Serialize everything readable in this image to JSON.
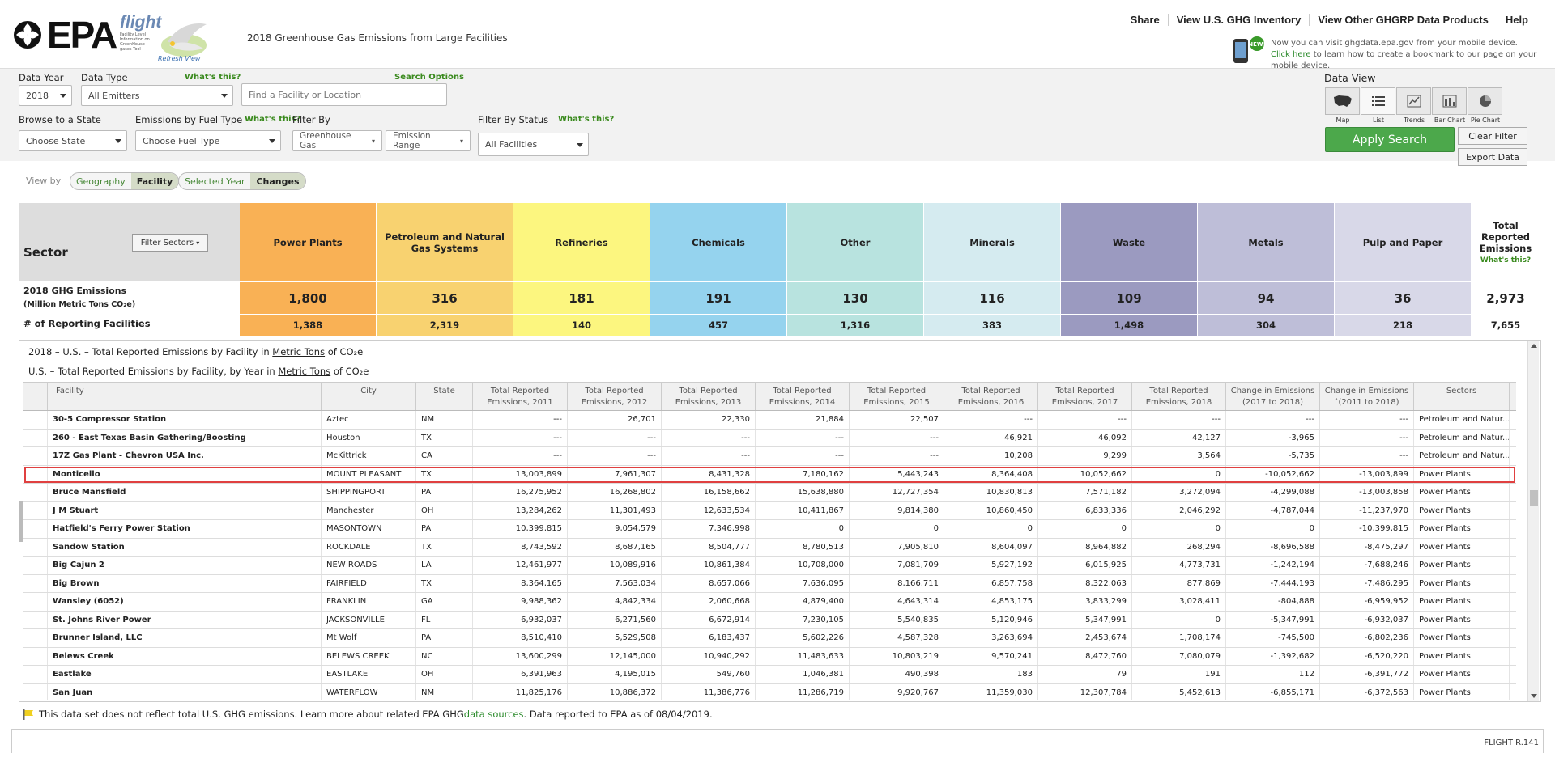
{
  "header": {
    "logo_text": "EPA",
    "flight_logo_text": "flight",
    "flight_subtext": "Facility Level Information on GreenHouse gases Tool",
    "refresh_view": "Refresh View",
    "page_title": "2018 Greenhouse Gas Emissions from Large Facilities",
    "top_links": [
      "Share",
      "View U.S. GHG Inventory",
      "View Other GHGRP Data Products",
      "Help"
    ],
    "mobile_text_a": "Now you can visit ghgdata.epa.gov from your mobile device. ",
    "mobile_link": "Click here",
    "mobile_text_b": " to learn how to create a bookmark to our page on your mobile device.",
    "mobile_badge": "NEW!"
  },
  "search": {
    "data_year_label": "Data Year",
    "data_year_value": "2018",
    "data_type_label": "Data Type",
    "data_type_whats_this": "What's this?",
    "data_type_value": "All Emitters",
    "search_options": "Search Options",
    "search_placeholder": "Find a Facility or Location",
    "browse_state_label": "Browse to a State",
    "state_value": "Choose State",
    "fuel_label": "Emissions by Fuel Type",
    "fuel_whats_this": "What's this?",
    "fuel_value": "Choose Fuel Type",
    "filter_by_label": "Filter By",
    "greenhouse_gas_btn": "Greenhouse Gas",
    "emission_range_btn": "Emission Range",
    "status_label": "Filter By Status",
    "status_whats_this": "What's this?",
    "status_value": "All Facilities"
  },
  "data_view": {
    "label": "Data View",
    "views": [
      "Map",
      "List",
      "Trends",
      "Bar Chart",
      "Pie Chart"
    ],
    "active_view": "List",
    "apply_button": "Apply Search",
    "clear_button": "Clear Filter",
    "export_button": "Export Data"
  },
  "view_by": {
    "label": "View by",
    "geo": "Geography",
    "facility": "Facility",
    "selected_year": "Selected Year",
    "changes": "Changes"
  },
  "sectors": {
    "title": "Sector",
    "filter_button": "Filter Sectors",
    "ghg_label": "2018 GHG Emissions",
    "ghg_unit": "(Million Metric Tons CO₂e)",
    "fac_label": "# of Reporting Facilities",
    "total_label": "Total Reported Emissions",
    "total_whats_this": "What's this?",
    "total_emissions": "2,973",
    "total_facilities": "7,655",
    "items": [
      {
        "name": "Power Plants",
        "emissions": "1,800",
        "facilities": "1,388",
        "color": "#f9b155"
      },
      {
        "name": "Petroleum and Natural Gas Systems",
        "emissions": "316",
        "facilities": "2,319",
        "color": "#f8d270"
      },
      {
        "name": "Refineries",
        "emissions": "181",
        "facilities": "140",
        "color": "#fcf67f"
      },
      {
        "name": "Chemicals",
        "emissions": "191",
        "facilities": "457",
        "color": "#95d3ee"
      },
      {
        "name": "Other",
        "emissions": "130",
        "facilities": "1,316",
        "color": "#b8e3df"
      },
      {
        "name": "Minerals",
        "emissions": "116",
        "facilities": "383",
        "color": "#d5ebf0"
      },
      {
        "name": "Waste",
        "emissions": "109",
        "facilities": "1,498",
        "color": "#9b9ac0"
      },
      {
        "name": "Metals",
        "emissions": "94",
        "facilities": "304",
        "color": "#bebed8"
      },
      {
        "name": "Pulp and Paper",
        "emissions": "36",
        "facilities": "218",
        "color": "#d8d8e8"
      }
    ]
  },
  "table": {
    "caption1_a": "2018 – U.S. – Total Reported Emissions by Facility in ",
    "caption1_link": "Metric Tons",
    "caption1_b": " of CO₂e",
    "caption2_a": "U.S. – Total Reported Emissions by Facility, by Year in ",
    "caption2_link": "Metric Tons",
    "caption2_b": " of CO₂e",
    "columns": [
      "",
      "Facility",
      "City",
      "State",
      "Total Reported Emissions, 2011",
      "Total Reported Emissions, 2012",
      "Total Reported Emissions, 2013",
      "Total Reported Emissions, 2014",
      "Total Reported Emissions, 2015",
      "Total Reported Emissions, 2016",
      "Total Reported Emissions, 2017",
      "Total Reported Emissions, 2018",
      "Change in Emissions (2017 to 2018)",
      "Change in Emissions ˄(2011 to 2018)",
      "Sectors"
    ],
    "rows": [
      [
        "30-5 Compressor Station",
        "Aztec",
        "NM",
        "---",
        "26,701",
        "22,330",
        "21,884",
        "22,507",
        "---",
        "---",
        "---",
        "---",
        "---",
        "Petroleum and Natur..."
      ],
      [
        "260 - East Texas Basin Gathering/Boosting",
        "Houston",
        "TX",
        "---",
        "---",
        "---",
        "---",
        "---",
        "46,921",
        "46,092",
        "42,127",
        "-3,965",
        "---",
        "Petroleum and Natur..."
      ],
      [
        "17Z Gas Plant - Chevron USA Inc.",
        "McKittrick",
        "CA",
        "---",
        "---",
        "---",
        "---",
        "---",
        "10,208",
        "9,299",
        "3,564",
        "-5,735",
        "---",
        "Petroleum and Natur..."
      ],
      [
        "Monticello",
        "MOUNT PLEASANT",
        "TX",
        "13,003,899",
        "7,961,307",
        "8,431,328",
        "7,180,162",
        "5,443,243",
        "8,364,408",
        "10,052,662",
        "0",
        "-10,052,662",
        "-13,003,899",
        "Power Plants"
      ],
      [
        "Bruce Mansfield",
        "SHIPPINGPORT",
        "PA",
        "16,275,952",
        "16,268,802",
        "16,158,662",
        "15,638,880",
        "12,727,354",
        "10,830,813",
        "7,571,182",
        "3,272,094",
        "-4,299,088",
        "-13,003,858",
        "Power Plants"
      ],
      [
        "J M Stuart",
        "Manchester",
        "OH",
        "13,284,262",
        "11,301,493",
        "12,633,534",
        "10,411,867",
        "9,814,380",
        "10,860,450",
        "6,833,336",
        "2,046,292",
        "-4,787,044",
        "-11,237,970",
        "Power Plants"
      ],
      [
        "Hatfield's Ferry Power Station",
        "MASONTOWN",
        "PA",
        "10,399,815",
        "9,054,579",
        "7,346,998",
        "0",
        "0",
        "0",
        "0",
        "0",
        "0",
        "-10,399,815",
        "Power Plants"
      ],
      [
        "Sandow Station",
        "ROCKDALE",
        "TX",
        "8,743,592",
        "8,687,165",
        "8,504,777",
        "8,780,513",
        "7,905,810",
        "8,604,097",
        "8,964,882",
        "268,294",
        "-8,696,588",
        "-8,475,297",
        "Power Plants"
      ],
      [
        "Big Cajun 2",
        "NEW ROADS",
        "LA",
        "12,461,977",
        "10,089,916",
        "10,861,384",
        "10,708,000",
        "7,081,709",
        "5,927,192",
        "6,015,925",
        "4,773,731",
        "-1,242,194",
        "-7,688,246",
        "Power Plants"
      ],
      [
        "Big Brown",
        "FAIRFIELD",
        "TX",
        "8,364,165",
        "7,563,034",
        "8,657,066",
        "7,636,095",
        "8,166,711",
        "6,857,758",
        "8,322,063",
        "877,869",
        "-7,444,193",
        "-7,486,295",
        "Power Plants"
      ],
      [
        "Wansley (6052)",
        "FRANKLIN",
        "GA",
        "9,988,362",
        "4,842,334",
        "2,060,668",
        "4,879,400",
        "4,643,314",
        "4,853,175",
        "3,833,299",
        "3,028,411",
        "-804,888",
        "-6,959,952",
        "Power Plants"
      ],
      [
        "St. Johns River Power",
        "JACKSONVILLE",
        "FL",
        "6,932,037",
        "6,271,560",
        "6,672,914",
        "7,230,105",
        "5,540,835",
        "5,120,946",
        "5,347,991",
        "0",
        "-5,347,991",
        "-6,932,037",
        "Power Plants"
      ],
      [
        "Brunner Island, LLC",
        "Mt Wolf",
        "PA",
        "8,510,410",
        "5,529,508",
        "6,183,437",
        "5,602,226",
        "4,587,328",
        "3,263,694",
        "2,453,674",
        "1,708,174",
        "-745,500",
        "-6,802,236",
        "Power Plants"
      ],
      [
        "Belews Creek",
        "BELEWS CREEK",
        "NC",
        "13,600,299",
        "12,145,000",
        "10,940,292",
        "11,483,633",
        "10,803,219",
        "9,570,241",
        "8,472,760",
        "7,080,079",
        "-1,392,682",
        "-6,520,220",
        "Power Plants"
      ],
      [
        "Eastlake",
        "EASTLAKE",
        "OH",
        "6,391,963",
        "4,195,015",
        "549,760",
        "1,046,381",
        "490,398",
        "183",
        "79",
        "191",
        "112",
        "-6,391,772",
        "Power Plants"
      ],
      [
        "San Juan",
        "WATERFLOW",
        "NM",
        "11,825,176",
        "10,886,372",
        "11,386,776",
        "11,286,719",
        "9,920,767",
        "11,359,030",
        "12,307,784",
        "5,452,613",
        "-6,855,171",
        "-6,372,563",
        "Power Plants"
      ]
    ],
    "highlighted_row": 3
  },
  "footer": {
    "note_a": "This data set does not reflect total U.S. GHG emissions. Learn more about related EPA GHG ",
    "note_link": "data sources",
    "note_b": ". Data reported to EPA as of 08/04/2019.",
    "version": "FLIGHT R.141"
  }
}
